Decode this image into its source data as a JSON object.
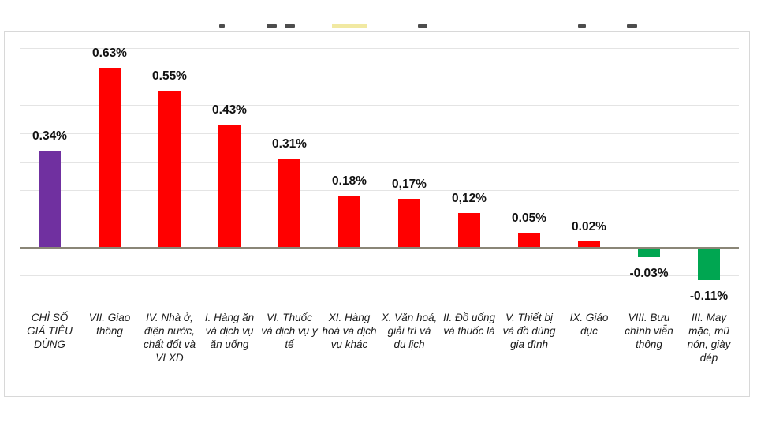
{
  "chart_data": {
    "type": "bar",
    "title": "",
    "categories": [
      "CHỈ SỐ GIÁ TIÊU DÙNG",
      "VII. Giao thông",
      "IV. Nhà ở, điện nước, chất đốt và VLXD",
      "I. Hàng ăn và dịch vụ ăn uống",
      "VI. Thuốc và dịch vụ y tế",
      "XI. Hàng hoá và dịch vụ khác",
      "X. Văn hoá, giải trí và du lịch",
      "II. Đồ uống và thuốc lá",
      "V. Thiết bị và đồ dùng gia đình",
      "IX. Giáo dục",
      "VIII. Bưu chính viễn thông",
      "III. May mặc, mũ nón, giày dép"
    ],
    "values": [
      0.34,
      0.63,
      0.55,
      0.43,
      0.31,
      0.18,
      0.17,
      0.12,
      0.05,
      0.02,
      -0.03,
      -0.11
    ],
    "value_labels": [
      "0.34%",
      "0.63%",
      "0.55%",
      "0.43%",
      "0.31%",
      "0,17%",
      "0,12%",
      "0.05%",
      "0.02%",
      "-0.03%",
      "-0.11%"
    ],
    "value_labels_full": [
      "0.34%",
      "0.63%",
      "0.55%",
      "0.43%",
      "0.31%",
      "0.18%",
      "0,17%",
      "0,12%",
      "0.05%",
      "0.02%",
      "-0.03%",
      "-0.11%"
    ],
    "unit": "%",
    "bar_color_keys": [
      "cpi",
      "up",
      "up",
      "up",
      "up",
      "up",
      "up",
      "up",
      "up",
      "up",
      "down",
      "down"
    ],
    "series_colors": {
      "cpi": "#7030A0",
      "up": "#FF0000",
      "down": "#00A651"
    },
    "axis": {
      "y_tick_labels_visible": false,
      "gridlines": {
        "max": 0.7,
        "min": -0.1,
        "step": 0.1
      },
      "ylim": [
        -0.2,
        0.76
      ],
      "zero_line": true
    },
    "legend": "none"
  }
}
